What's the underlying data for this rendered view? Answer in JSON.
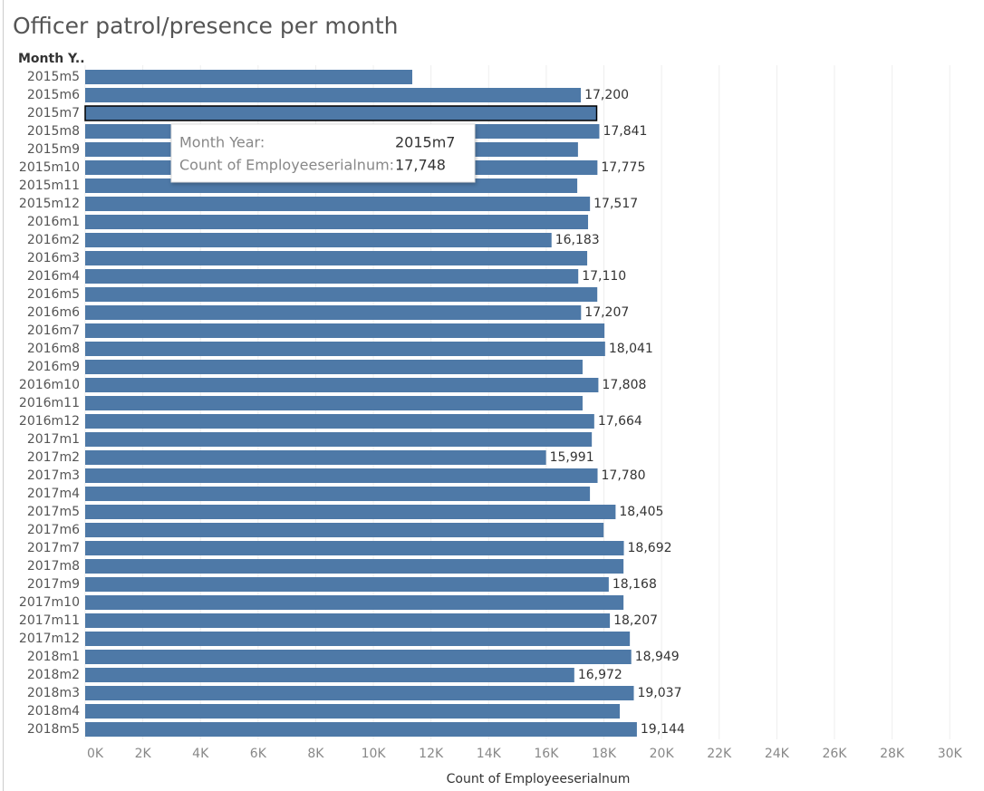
{
  "chart_data": {
    "type": "bar",
    "orientation": "horizontal",
    "title": "Officer patrol/presence per month",
    "y_header": "Month Y..",
    "x_label": "Count of Employeeserialnum",
    "color": "#4e79a7",
    "highlight_index": 2,
    "grid": true,
    "categories": [
      "2015m5",
      "2015m6",
      "2015m7",
      "2015m8",
      "2015m9",
      "2015m10",
      "2015m11",
      "2015m12",
      "2016m1",
      "2016m2",
      "2016m3",
      "2016m4",
      "2016m5",
      "2016m6",
      "2016m7",
      "2016m8",
      "2016m9",
      "2016m10",
      "2016m11",
      "2016m12",
      "2017m1",
      "2017m2",
      "2017m3",
      "2017m4",
      "2017m5",
      "2017m6",
      "2017m7",
      "2017m8",
      "2017m9",
      "2017m10",
      "2017m11",
      "2017m12",
      "2018m1",
      "2018m2",
      "2018m3",
      "2018m4",
      "2018m5"
    ],
    "values": [
      11350,
      17200,
      17748,
      17841,
      17100,
      17775,
      17075,
      17517,
      17450,
      16183,
      17420,
      17110,
      17770,
      17207,
      18020,
      18041,
      17260,
      17808,
      17260,
      17664,
      17580,
      15991,
      17780,
      17515,
      18405,
      17990,
      18692,
      18680,
      18168,
      18680,
      18207,
      18900,
      18949,
      16972,
      19037,
      18550,
      19144
    ],
    "value_labels": [
      null,
      "17,200",
      null,
      "17,841",
      null,
      "17,775",
      null,
      "17,517",
      null,
      "16,183",
      null,
      "17,110",
      null,
      "17,207",
      null,
      "18,041",
      null,
      "17,808",
      null,
      "17,664",
      null,
      "15,991",
      "17,780",
      null,
      "18,405",
      null,
      "18,692",
      null,
      "18,168",
      null,
      "18,207",
      null,
      "18,949",
      "16,972",
      "19,037",
      null,
      "19,144"
    ],
    "xlim": [
      0,
      31000
    ],
    "xticks": [
      {
        "value": 0,
        "label": "0K"
      },
      {
        "value": 2000,
        "label": "2K"
      },
      {
        "value": 4000,
        "label": "4K"
      },
      {
        "value": 6000,
        "label": "6K"
      },
      {
        "value": 8000,
        "label": "8K"
      },
      {
        "value": 10000,
        "label": "10K"
      },
      {
        "value": 12000,
        "label": "12K"
      },
      {
        "value": 14000,
        "label": "14K"
      },
      {
        "value": 16000,
        "label": "16K"
      },
      {
        "value": 18000,
        "label": "18K"
      },
      {
        "value": 20000,
        "label": "20K"
      },
      {
        "value": 22000,
        "label": "22K"
      },
      {
        "value": 24000,
        "label": "24K"
      },
      {
        "value": 26000,
        "label": "26K"
      },
      {
        "value": 28000,
        "label": "28K"
      },
      {
        "value": 30000,
        "label": "30K"
      }
    ]
  },
  "tooltip": {
    "rows": [
      {
        "label": "Month Year:",
        "value": "2015m7"
      },
      {
        "label": "Count of Employeeserialnum:",
        "value": "17,748"
      }
    ]
  }
}
